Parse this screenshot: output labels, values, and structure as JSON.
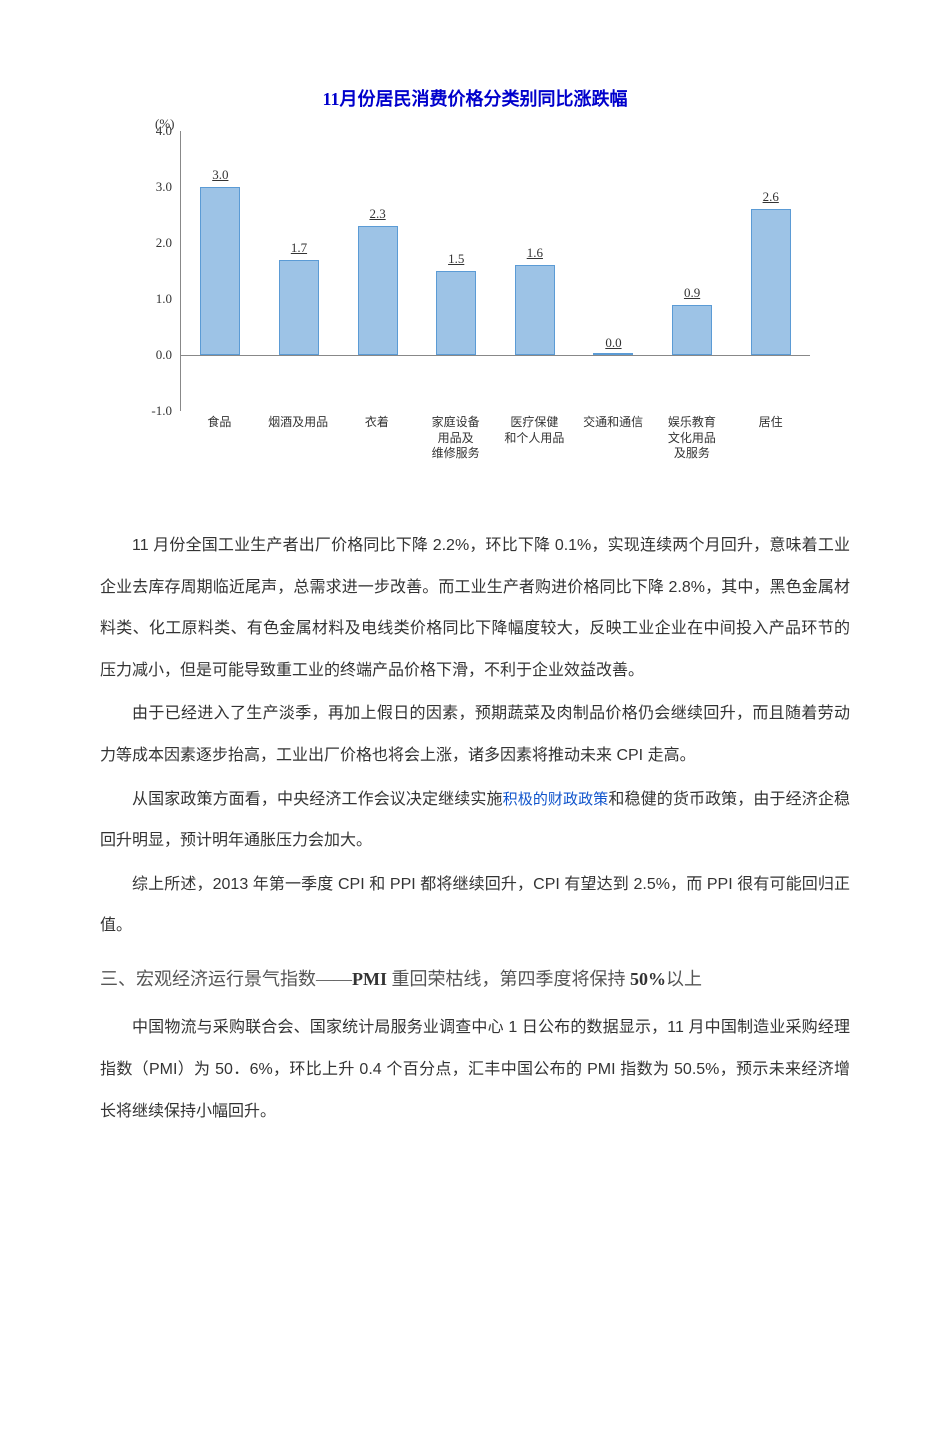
{
  "chart": {
    "title": "11月份居民消费价格分类别同比涨跌幅",
    "y_unit": "(%)",
    "y_ticks": [
      "4.0",
      "3.0",
      "2.0",
      "1.0",
      "0.0",
      "-1.0"
    ],
    "ylim_min": -1.0,
    "ylim_max": 4.0,
    "bar_color": "#9dc3e6",
    "bar_border": "#5b9bd5",
    "categories": [
      "食品",
      "烟酒及用品",
      "衣着",
      "家庭设备\n用品及\n维修服务",
      "医疗保健\n和个人用品",
      "交通和通信",
      "娱乐教育\n文化用品\n及服务",
      "居住"
    ],
    "values": [
      3.0,
      1.7,
      2.3,
      1.5,
      1.6,
      0.0,
      0.9,
      2.6
    ],
    "labels": [
      "3.0",
      "1.7",
      "2.3",
      "1.5",
      "1.6",
      "0.0",
      "0.9",
      "2.6"
    ]
  },
  "paragraphs": {
    "p1": "11 月份全国工业生产者出厂价格同比下降 2.2%，环比下降 0.1%，实现连续两个月回升，意味着工业企业去库存周期临近尾声，总需求进一步改善。而工业生产者购进价格同比下降 2.8%，其中，黑色金属材料类、化工原料类、有色金属材料及电线类价格同比下降幅度较大，反映工业企业在中间投入产品环节的压力减小，但是可能导致重工业的终端产品价格下滑，不利于企业效益改善。",
    "p2": "由于已经进入了生产淡季，再加上假日的因素，预期蔬菜及肉制品价格仍会继续回升，而且随着劳动力等成本因素逐步抬高，工业出厂价格也将会上涨，诸多因素将推动未来 CPI 走高。",
    "p3_a": "从国家政策方面看，中央经济工作会议决定继续实施",
    "p3_link": "积极的财政政策",
    "p3_b": "和稳健的货币政策，由于经济企稳回升明显，预计明年通胀压力会加大。",
    "p4": "综上所述，2013 年第一季度 CPI 和 PPI 都将继续回升，CPI 有望达到 2.5%，而 PPI 很有可能回归正值。"
  },
  "heading": {
    "prefix": "三、宏观经济运行景气指数——",
    "bold1": "PMI",
    "mid": " 重回荣枯线，第四季度将保持 ",
    "bold2": "50%",
    "suffix": "以上"
  },
  "p5": "中国物流与采购联合会、国家统计局服务业调查中心 1 日公布的数据显示，11 月中国制造业采购经理指数（PMI）为 50．6%，环比上升 0.4 个百分点，汇丰中国公布的 PMI 指数为 50.5%，预示未来经济增长将继续保持小幅回升。"
}
